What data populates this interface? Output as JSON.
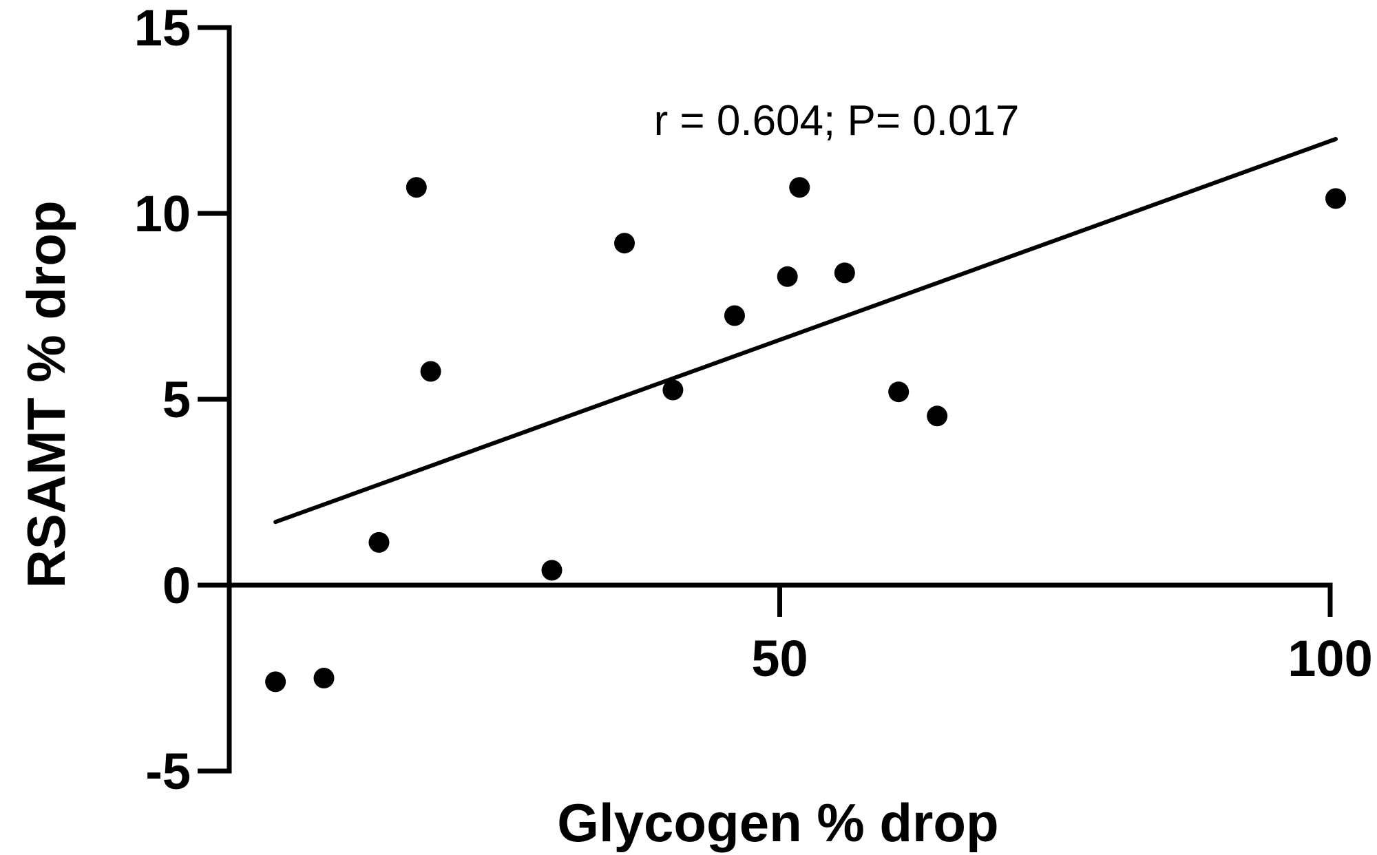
{
  "chart_data": {
    "type": "scatter",
    "xlabel": "Glycogen % drop",
    "ylabel": "RSAMT % drop",
    "xlim": [
      0,
      100
    ],
    "ylim": [
      -5,
      15
    ],
    "x_ticks": [
      {
        "value": 50,
        "label": "50"
      },
      {
        "value": 100,
        "label": "100"
      }
    ],
    "y_ticks": [
      {
        "value": 15,
        "label": "15"
      },
      {
        "value": 10,
        "label": "10"
      },
      {
        "value": 5,
        "label": "5"
      },
      {
        "value": 0,
        "label": "0"
      },
      {
        "value": -5,
        "label": "-5"
      }
    ],
    "annotation": "r = 0.604; P= 0.017",
    "grid": false,
    "series": [
      {
        "points": [
          {
            "x": 4.2,
            "y": -2.6
          },
          {
            "x": 8.6,
            "y": -2.5
          },
          {
            "x": 13.6,
            "y": 1.15
          },
          {
            "x": 17.0,
            "y": 10.7
          },
          {
            "x": 18.3,
            "y": 5.75
          },
          {
            "x": 29.3,
            "y": 0.4
          },
          {
            "x": 35.9,
            "y": 9.2
          },
          {
            "x": 40.3,
            "y": 5.25
          },
          {
            "x": 45.9,
            "y": 7.25
          },
          {
            "x": 50.7,
            "y": 8.3
          },
          {
            "x": 51.8,
            "y": 10.7
          },
          {
            "x": 55.9,
            "y": 8.4
          },
          {
            "x": 60.8,
            "y": 5.2
          },
          {
            "x": 64.3,
            "y": 4.55
          },
          {
            "x": 100.5,
            "y": 10.4
          }
        ]
      }
    ],
    "regression_line": {
      "x": [
        4.2,
        100.5
      ],
      "y": [
        1.7,
        12.0
      ]
    },
    "colors": {
      "points": "#000000",
      "line": "#000000",
      "axes": "#000000"
    }
  }
}
